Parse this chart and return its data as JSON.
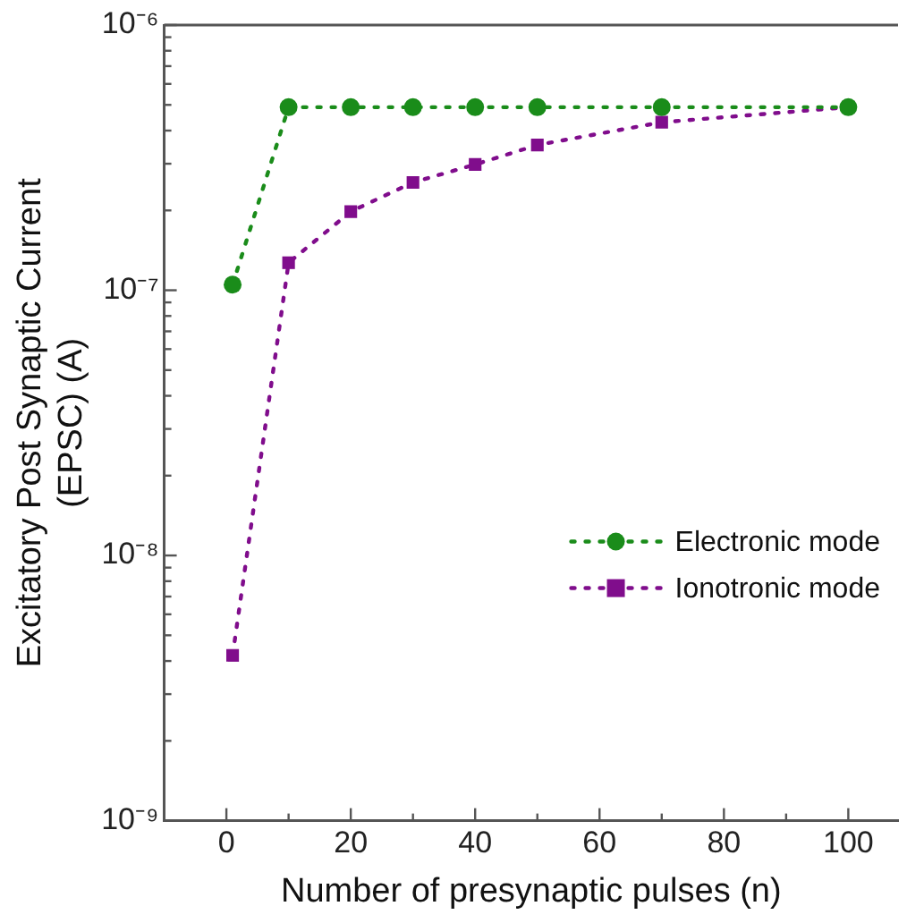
{
  "chart_data": {
    "type": "line",
    "xlabel": "Number of presynaptic pulses (n)",
    "ylabel": "Excitatory Post Synaptic Current (EPSC) (A)",
    "log": "y",
    "grid": false,
    "legend": "bottom right",
    "line_style": "dotted",
    "xlim": [
      -10,
      108
    ],
    "xticks": [
      0,
      {
        "value": 10,
        "label": null
      },
      20,
      {
        "value": 30,
        "label": null
      },
      40,
      {
        "value": 50,
        "label": null
      },
      60,
      {
        "value": 70,
        "label": null
      },
      80,
      {
        "value": 90,
        "label": null
      },
      100
    ],
    "ylim": [
      1e-09,
      1e-06
    ],
    "yticks": [
      {
        "value": 1e-09,
        "label": "10⁻⁹"
      },
      {
        "value": 2e-09,
        "label": null
      },
      {
        "value": 3e-09,
        "label": null
      },
      {
        "value": 4e-09,
        "label": null
      },
      {
        "value": 5e-09,
        "label": null
      },
      {
        "value": 6e-09,
        "label": null
      },
      {
        "value": 7e-09,
        "label": null
      },
      {
        "value": 8e-09,
        "label": null
      },
      {
        "value": 9e-09,
        "label": null
      },
      {
        "value": 1e-08,
        "label": "10⁻⁸"
      },
      {
        "value": 2e-08,
        "label": null
      },
      {
        "value": 3e-08,
        "label": null
      },
      {
        "value": 4e-08,
        "label": null
      },
      {
        "value": 5e-08,
        "label": null
      },
      {
        "value": 6e-08,
        "label": null
      },
      {
        "value": 7e-08,
        "label": null
      },
      {
        "value": 8e-08,
        "label": null
      },
      {
        "value": 9e-08,
        "label": null
      },
      {
        "value": 1e-07,
        "label": "10⁻⁷"
      },
      {
        "value": 2e-07,
        "label": null
      },
      {
        "value": 3e-07,
        "label": null
      },
      {
        "value": 4e-07,
        "label": null
      },
      {
        "value": 5e-07,
        "label": null
      },
      {
        "value": 6e-07,
        "label": null
      },
      {
        "value": 7e-07,
        "label": null
      },
      {
        "value": 8e-07,
        "label": null
      },
      {
        "value": 9e-07,
        "label": null
      },
      {
        "value": 1e-06,
        "label": "10⁻⁶"
      }
    ],
    "series": [
      {
        "name": "Electronic mode",
        "color": "#1a8c1a",
        "marker": "circle",
        "x": [
          1,
          10,
          20,
          30,
          40,
          50,
          70,
          100
        ],
        "values": [
          1.05e-07,
          4.9e-07,
          4.9e-07,
          4.9e-07,
          4.9e-07,
          4.9e-07,
          4.9e-07,
          4.9e-07
        ]
      },
      {
        "name": "Ionotronic mode",
        "color": "#800d8c",
        "marker": "square",
        "x": [
          1,
          10,
          20,
          30,
          40,
          50,
          70,
          100
        ],
        "values": [
          4.2e-09,
          1.27e-07,
          1.98e-07,
          2.55e-07,
          2.98e-07,
          3.53e-07,
          4.3e-07,
          4.9e-07
        ]
      }
    ]
  }
}
